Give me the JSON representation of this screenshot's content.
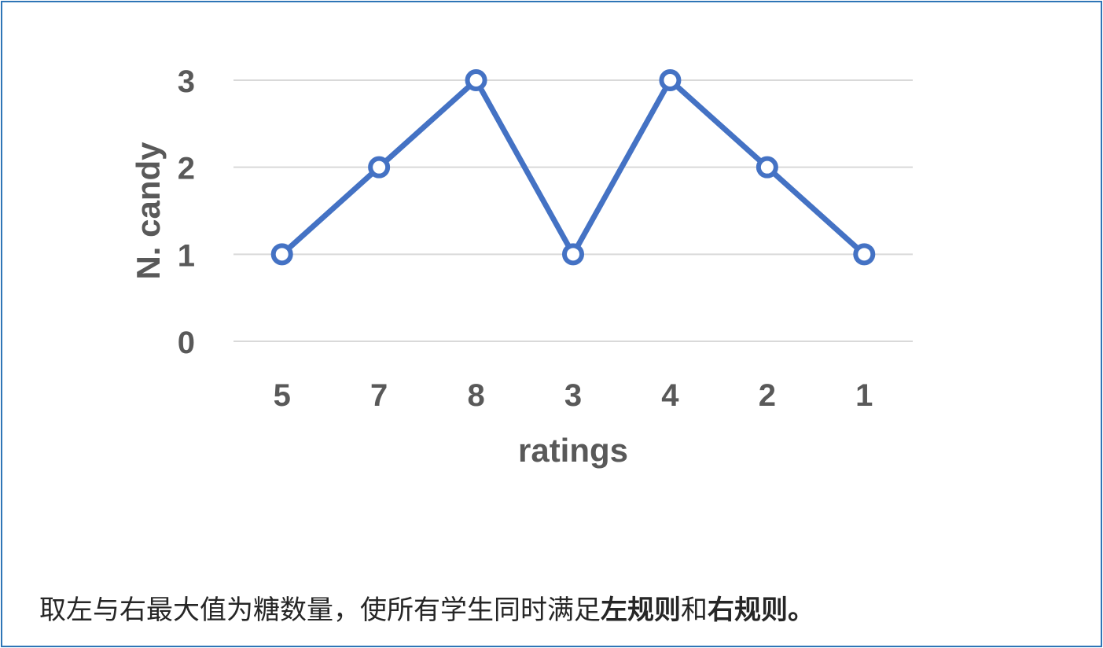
{
  "chart_data": {
    "type": "line",
    "categories": [
      "5",
      "7",
      "8",
      "3",
      "4",
      "2",
      "1"
    ],
    "values": [
      1,
      2,
      3,
      1,
      3,
      2,
      1
    ],
    "xlabel": "ratings",
    "ylabel": "N. candy",
    "ylim": [
      0,
      3
    ],
    "yticks": [
      "0",
      "1",
      "2",
      "3"
    ],
    "grid": true,
    "colors": {
      "line": "#4472c4",
      "grid": "#d9d9d9",
      "text": "#595959"
    }
  },
  "caption": {
    "part1": "取左与右最大值为糖数量，使所有学生同时满足",
    "bold1": "左规则",
    "part2": "和",
    "bold2": "右规则",
    "part3": "。"
  }
}
